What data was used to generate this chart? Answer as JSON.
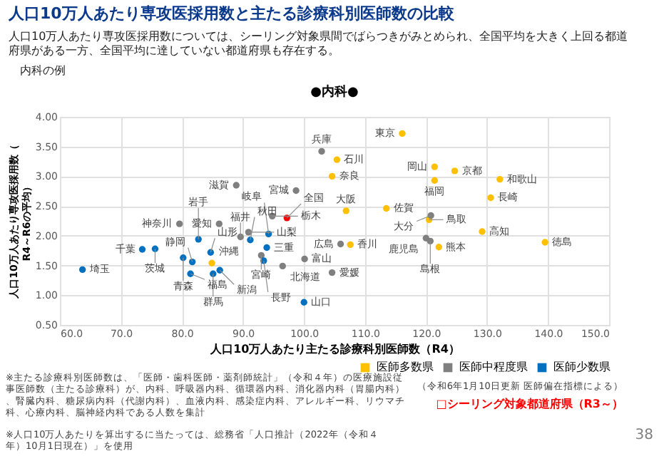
{
  "chart_data": {
    "type": "scatter",
    "title": "人口10万人あたり専攻医採用数と主たる診療科別医師数の比較",
    "subtitle": "人口10万人あたり専攻医採用数については、シーリング対象県間でばらつきがみとめられ、全国平均を大きく上回る都道府県がある一方、全国平均に達していない都道府県も存在する。",
    "xlabel": "人口10万人あたり主たる診療科別医師数（R4）",
    "ylabel": "人口10万人あたり専攻医採用数（R4～R6の平均）",
    "marker": "circle",
    "grid": true,
    "legend": "bottom right",
    "xlim": [
      60,
      150
    ],
    "xticks": [
      {
        "value": 60,
        "label": "60.0"
      },
      {
        "value": 70,
        "label": "70.0"
      },
      {
        "value": 80,
        "label": "80.0"
      },
      {
        "value": 90,
        "label": "90.0"
      },
      {
        "value": 100,
        "label": "100.0"
      },
      {
        "value": 110,
        "label": "110.0"
      },
      {
        "value": 120,
        "label": "120.0"
      },
      {
        "value": 130,
        "label": "130.0"
      },
      {
        "value": 140,
        "label": "140.0"
      },
      {
        "value": 150,
        "label": "150.0"
      }
    ],
    "ylim": [
      0.5,
      4
    ],
    "yticks": [
      {
        "value": 0.5,
        "label": "0.50"
      },
      {
        "value": 1,
        "label": "1.00"
      },
      {
        "value": 1.5,
        "label": "1.50"
      },
      {
        "value": 2,
        "label": "2.00"
      },
      {
        "value": 2.5,
        "label": "2.50"
      },
      {
        "value": 3,
        "label": "3.00"
      },
      {
        "value": 3.5,
        "label": "3.50"
      },
      {
        "value": 4,
        "label": "4.00"
      }
    ],
    "series": [
      {
        "name": "医師多数県",
        "color": "#ffc000",
        "x": [
          116.1,
          105.4,
          104.6,
          106.9,
          113.5,
          121.4,
          124.7,
          121.4,
          132.1,
          130.6,
          120.5,
          129.2,
          139.5,
          122.1,
          107.6,
          84.9
        ],
        "values": [
          3.72,
          3.28,
          3.0,
          2.42,
          2.46,
          3.16,
          3.09,
          2.93,
          2.95,
          2.64,
          2.27,
          2.07,
          1.89,
          1.81,
          1.85,
          1.54
        ]
      },
      {
        "name": "医師中程度県",
        "color": "#7f7f7f",
        "x": [
          102.9,
          98.7,
          88.9,
          79.6,
          86.1,
          89.6,
          90.9,
          94.8,
          93.0,
          96.5,
          100.1,
          120.8,
          120.0,
          120.7,
          106.0,
          104.6
        ],
        "values": [
          3.42,
          2.76,
          2.85,
          2.2,
          2.2,
          1.98,
          2.06,
          2.33,
          1.67,
          1.49,
          1.61,
          2.34,
          1.96,
          1.91,
          1.86,
          1.38
        ]
      },
      {
        "name": "医師少数県",
        "color": "#0070c0",
        "x": [
          63.7,
          73.5,
          75.6,
          80.2,
          81.7,
          81.4,
          82.7,
          84.7,
          85.1,
          86.2,
          91.2,
          94.2,
          93.9,
          93.4,
          100.0
        ],
        "values": [
          1.43,
          1.77,
          1.78,
          1.63,
          1.56,
          1.36,
          1.94,
          1.72,
          1.36,
          1.42,
          1.93,
          2.03,
          1.8,
          1.58,
          0.88
        ]
      },
      {
        "color": "#ff0000",
        "x": [
          97.2
        ],
        "values": [
          2.3
        ]
      }
    ],
    "annotations": [
      "内科の例",
      "●内科●",
      "※主たる診療科別医師数は、「医師・歯科医師・薬剤師統計」（令和４年）の医療施設従事医師数（主たる診療科）が、内科、呼吸器内科、循環器内科、消化器内科（胃腸内科）、腎臓内科、糖尿病内科（代謝内科）、血液内科、感染症内科、アレルギー科、リウマチ科、心療内科、脳神経内科である人数を集計",
      "※人口10万人あたりを算出するに当たっては、総務省「人口推計（2022年（令和４年）10月1日現在）」を使用",
      "（令和6年1月10日更新 医師偏在指標による）",
      "□シーリング対象都道府県（R3～）",
      "38",
      {
        "text": "東京",
        "x": 116.1,
        "y": 3.72
      },
      {
        "text": "石川",
        "x": 105.4,
        "y": 3.28
      },
      {
        "text": "奈良",
        "x": 104.6,
        "y": 3.0
      },
      {
        "text": "大阪",
        "x": 106.9,
        "y": 2.42
      },
      {
        "text": "佐賀",
        "x": 113.5,
        "y": 2.46
      },
      {
        "text": "岡山",
        "x": 121.4,
        "y": 3.16
      },
      {
        "text": "京都",
        "x": 124.7,
        "y": 3.09
      },
      {
        "text": "福岡",
        "x": 121.4,
        "y": 2.93
      },
      {
        "text": "和歌山",
        "x": 132.1,
        "y": 2.95
      },
      {
        "text": "長崎",
        "x": 130.6,
        "y": 2.64
      },
      {
        "text": "鳥取",
        "x": 120.5,
        "y": 2.27
      },
      {
        "text": "高知",
        "x": 129.2,
        "y": 2.07
      },
      {
        "text": "徳島",
        "x": 139.5,
        "y": 1.89
      },
      {
        "text": "熊本",
        "x": 122.1,
        "y": 1.81
      },
      {
        "text": "香川",
        "x": 107.6,
        "y": 1.85
      },
      {
        "text": "沖縄",
        "x": 84.9,
        "y": 1.54
      },
      {
        "text": "兵庫",
        "x": 102.9,
        "y": 3.42
      },
      {
        "text": "宮城",
        "x": 98.7,
        "y": 2.76
      },
      {
        "text": "滋賀",
        "x": 88.9,
        "y": 2.85
      },
      {
        "text": "神奈川",
        "x": 79.6,
        "y": 2.2
      },
      {
        "text": "愛知",
        "x": 86.1,
        "y": 2.2
      },
      {
        "text": "福井",
        "x": 89.6,
        "y": 1.98
      },
      {
        "text": "山梨",
        "x": 90.9,
        "y": 2.06
      },
      {
        "text": "栃木",
        "x": 94.8,
        "y": 2.33
      },
      {
        "text": "宮崎",
        "x": 93.0,
        "y": 1.67
      },
      {
        "text": "北海道",
        "x": 96.5,
        "y": 1.49
      },
      {
        "text": "富山",
        "x": 100.1,
        "y": 1.61
      },
      {
        "text": "大分",
        "x": 120.8,
        "y": 2.34
      },
      {
        "text": "鹿児島",
        "x": 120.0,
        "y": 1.96
      },
      {
        "text": "島根",
        "x": 120.7,
        "y": 1.91
      },
      {
        "text": "広島",
        "x": 106.0,
        "y": 1.86
      },
      {
        "text": "愛媛",
        "x": 104.6,
        "y": 1.38
      },
      {
        "text": "埼玉",
        "x": 63.7,
        "y": 1.43
      },
      {
        "text": "千葉",
        "x": 73.5,
        "y": 1.77
      },
      {
        "text": "茨城",
        "x": 75.6,
        "y": 1.78
      },
      {
        "text": "青森",
        "x": 80.2,
        "y": 1.63
      },
      {
        "text": "静岡",
        "x": 81.7,
        "y": 1.56
      },
      {
        "text": "福島",
        "x": 81.4,
        "y": 1.36
      },
      {
        "text": "岩手",
        "x": 82.7,
        "y": 1.94
      },
      {
        "text": "山形",
        "x": 84.7,
        "y": 1.72
      },
      {
        "text": "群馬",
        "x": 85.1,
        "y": 1.36
      },
      {
        "text": "新潟",
        "x": 86.2,
        "y": 1.42
      },
      {
        "text": "秋田",
        "x": 91.2,
        "y": 1.93
      },
      {
        "text": "岐阜",
        "x": 94.2,
        "y": 2.03
      },
      {
        "text": "三重",
        "x": 93.9,
        "y": 1.8
      },
      {
        "text": "長野",
        "x": 93.4,
        "y": 1.58
      },
      {
        "text": "山口",
        "x": 100.0,
        "y": 0.88
      },
      {
        "text": "全国",
        "x": 97.2,
        "y": 2.3
      }
    ]
  }
}
